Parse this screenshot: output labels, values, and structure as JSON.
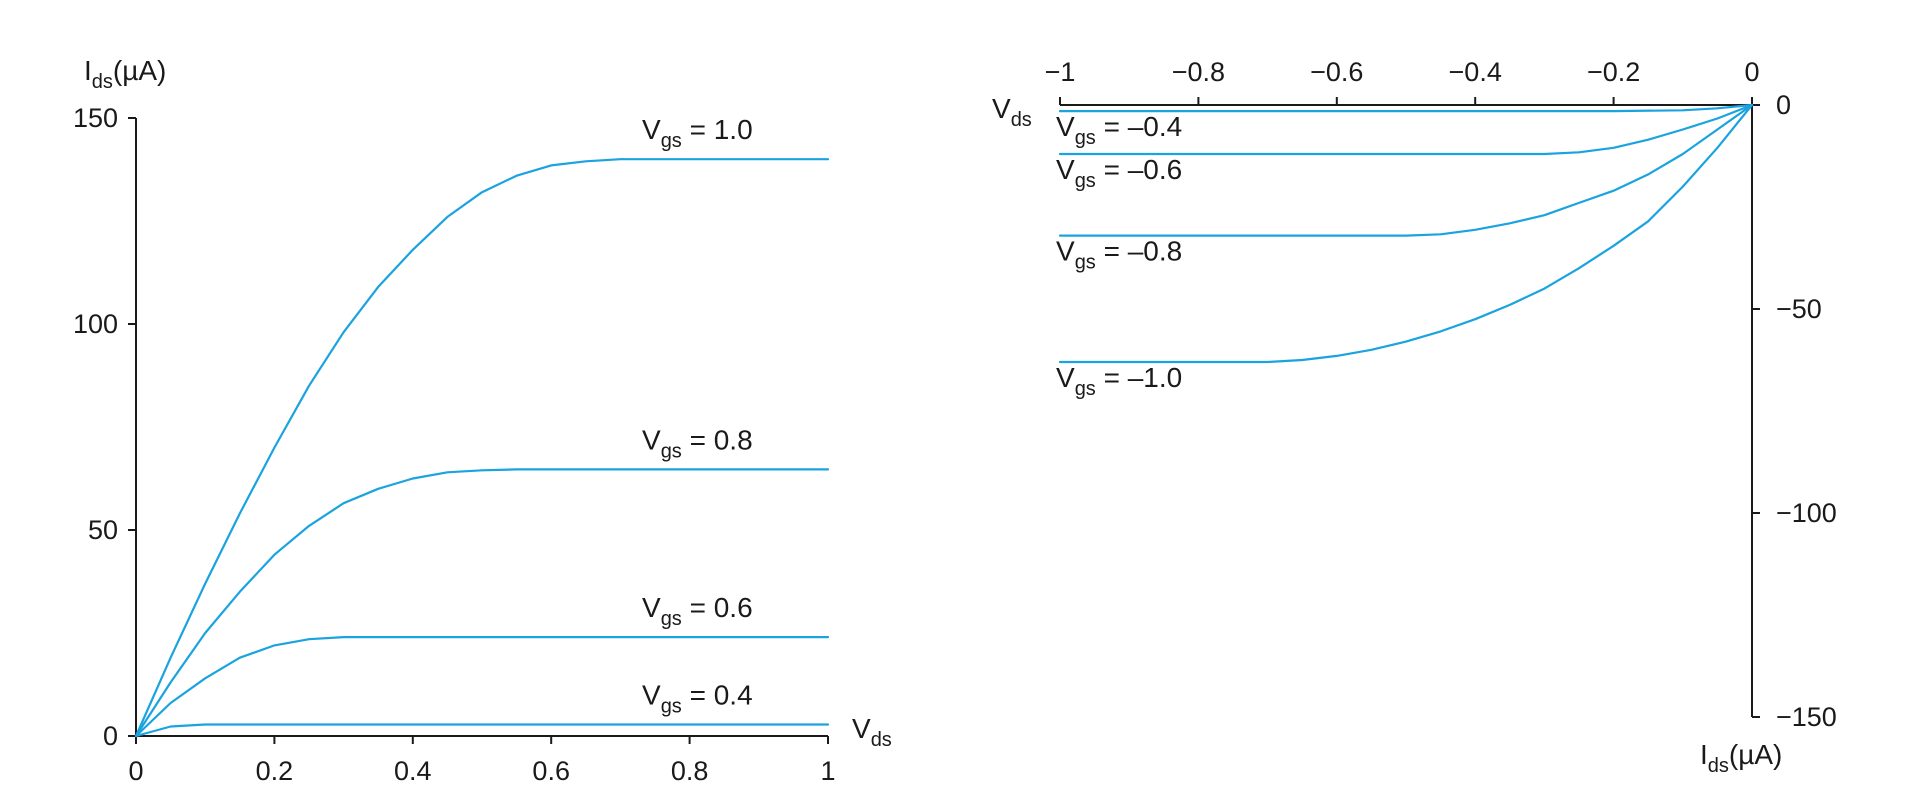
{
  "chart_data": [
    {
      "type": "line",
      "name": "nmos",
      "xlabel": {
        "main": "V",
        "sub": "ds",
        "rest": ""
      },
      "ylabel": {
        "main": "I",
        "sub": "ds",
        "rest": "(µA)"
      },
      "xlim": [
        0,
        1
      ],
      "ylim": [
        0,
        150
      ],
      "xticks": [
        0,
        0.2,
        0.4,
        0.6,
        0.8,
        1
      ],
      "xtick_labels": [
        "0",
        "0.2",
        "0.4",
        "0.6",
        "0.8",
        "1"
      ],
      "yticks": [
        0,
        50,
        100,
        150
      ],
      "ytick_labels": [
        "0",
        "50",
        "100",
        "150"
      ],
      "grid": false,
      "series": [
        {
          "label": {
            "main": "V",
            "sub": "gs",
            "rest": " = 1.0"
          },
          "x": [
            0,
            0.05,
            0.1,
            0.15,
            0.2,
            0.25,
            0.3,
            0.35,
            0.4,
            0.45,
            0.5,
            0.55,
            0.6,
            0.65,
            0.7,
            0.8,
            1.0
          ],
          "y": [
            0,
            19,
            37,
            54,
            70,
            85,
            98,
            109,
            118,
            126,
            132,
            136,
            138.5,
            139.5,
            140,
            140,
            140
          ]
        },
        {
          "label": {
            "main": "V",
            "sub": "gs",
            "rest": " = 0.8"
          },
          "x": [
            0,
            0.05,
            0.1,
            0.15,
            0.2,
            0.25,
            0.3,
            0.35,
            0.4,
            0.45,
            0.5,
            0.55,
            0.6,
            0.7,
            0.8,
            1.0
          ],
          "y": [
            0,
            13,
            25,
            35,
            44,
            51,
            56.5,
            60,
            62.5,
            64,
            64.5,
            64.7,
            64.7,
            64.7,
            64.7,
            64.7
          ]
        },
        {
          "label": {
            "main": "V",
            "sub": "gs",
            "rest": " = 0.6"
          },
          "x": [
            0,
            0.05,
            0.1,
            0.15,
            0.2,
            0.25,
            0.3,
            0.4,
            0.6,
            0.8,
            1.0
          ],
          "y": [
            0,
            8,
            14,
            19,
            22,
            23.5,
            24,
            24,
            24,
            24,
            24
          ]
        },
        {
          "label": {
            "main": "V",
            "sub": "gs",
            "rest": " = 0.4"
          },
          "x": [
            0,
            0.05,
            0.1,
            0.2,
            0.4,
            0.6,
            0.8,
            1.0
          ],
          "y": [
            0,
            2.3,
            2.8,
            2.8,
            2.8,
            2.8,
            2.8,
            2.8
          ]
        }
      ]
    },
    {
      "type": "line",
      "name": "pmos",
      "xlabel": {
        "main": "V",
        "sub": "ds",
        "rest": ""
      },
      "ylabel": {
        "main": "I",
        "sub": "ds",
        "rest": "(µA)"
      },
      "xlim": [
        -1,
        0
      ],
      "ylim": [
        -150,
        0
      ],
      "xticks": [
        -1,
        -0.8,
        -0.6,
        -0.4,
        -0.2,
        0
      ],
      "xtick_labels": [
        "−1",
        "−0.8",
        "−0.6",
        "−0.4",
        "−0.2",
        "0"
      ],
      "yticks": [
        0,
        -50,
        -100,
        -150
      ],
      "ytick_labels": [
        "0",
        "−50",
        "−100",
        "−150"
      ],
      "grid": false,
      "series": [
        {
          "label": {
            "main": "V",
            "sub": "gs",
            "rest": " = –0.4"
          },
          "x": [
            -1,
            -0.8,
            -0.6,
            -0.4,
            -0.2,
            -0.1,
            -0.05,
            0
          ],
          "y": [
            -1.5,
            -1.5,
            -1.5,
            -1.5,
            -1.5,
            -1.3,
            -0.8,
            0
          ]
        },
        {
          "label": {
            "main": "V",
            "sub": "gs",
            "rest": " = –0.6"
          },
          "x": [
            -1,
            -0.8,
            -0.6,
            -0.4,
            -0.3,
            -0.25,
            -0.2,
            -0.15,
            -0.1,
            -0.05,
            0
          ],
          "y": [
            -12,
            -12,
            -12,
            -12,
            -12,
            -11.6,
            -10.5,
            -8.5,
            -6,
            -3.3,
            0
          ]
        },
        {
          "label": {
            "main": "V",
            "sub": "gs",
            "rest": " = –0.8"
          },
          "x": [
            -1,
            -0.8,
            -0.6,
            -0.5,
            -0.45,
            -0.4,
            -0.35,
            -0.3,
            -0.25,
            -0.2,
            -0.15,
            -0.1,
            -0.05,
            0
          ],
          "y": [
            -32,
            -32,
            -32,
            -32,
            -31.7,
            -30.6,
            -29,
            -27,
            -24,
            -21,
            -17,
            -12,
            -6,
            0
          ]
        },
        {
          "label": {
            "main": "V",
            "sub": "gs",
            "rest": " = –1.0"
          },
          "x": [
            -1,
            -0.8,
            -0.7,
            -0.65,
            -0.6,
            -0.55,
            -0.5,
            -0.45,
            -0.4,
            -0.35,
            -0.3,
            -0.25,
            -0.2,
            -0.15,
            -0.1,
            -0.05,
            0
          ],
          "y": [
            -63,
            -63,
            -63,
            -62.5,
            -61.5,
            -60,
            -58,
            -55.5,
            -52.5,
            -49,
            -45,
            -40,
            -34.5,
            -28.5,
            -20,
            -10.5,
            0
          ]
        }
      ]
    }
  ],
  "colors": {
    "curve": "#1aa3df",
    "axis": "#1a1a1a",
    "text": "#1a1a1a"
  }
}
